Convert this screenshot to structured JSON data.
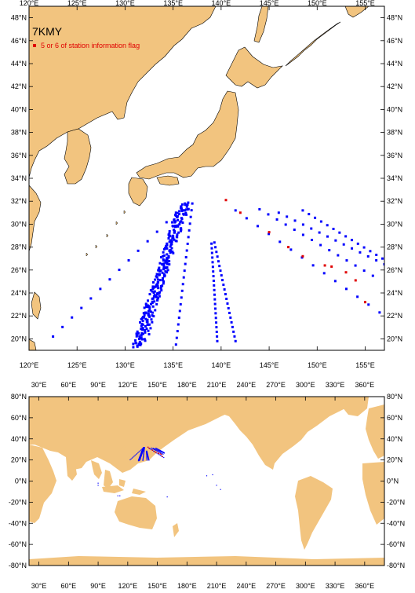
{
  "cruise_code": "7KMY",
  "legend": {
    "flag_label": "5 or 6 of station information flag",
    "flag_color": "#e00000",
    "station_color": "#0000ff"
  },
  "colors": {
    "land": "#f2c47f",
    "ocean": "#ffffff"
  },
  "top_map": {
    "lon_range": [
      120,
      157
    ],
    "lat_range": [
      19,
      49
    ],
    "x_tick_labels": [
      "120°E",
      "125°E",
      "130°E",
      "135°E",
      "140°E",
      "145°E",
      "150°E",
      "155°E"
    ],
    "y_tick_labels": [
      "20°N",
      "22°N",
      "24°N",
      "26°N",
      "28°N",
      "30°N",
      "32°N",
      "34°N",
      "36°N",
      "38°N",
      "40°N",
      "42°N",
      "44°N",
      "46°N",
      "48°N"
    ]
  },
  "bottom_map": {
    "lon_range": [
      20,
      380
    ],
    "lat_range": [
      -80,
      80
    ],
    "x_tick_labels": [
      "30°E",
      "60°E",
      "90°E",
      "120°E",
      "150°E",
      "180°E",
      "210°E",
      "240°E",
      "270°E",
      "300°E",
      "330°E",
      "360°E"
    ],
    "y_tick_labels": [
      "80°N",
      "60°N",
      "40°N",
      "20°N",
      "0°N",
      "-20°N",
      "-40°N",
      "-60°N",
      "-80°N"
    ]
  },
  "chart_data": {
    "type": "scatter",
    "title": "7KMY",
    "series": [
      {
        "name": "5 or 6 of station information flag",
        "points": [
          [
            140.5,
            32.1
          ],
          [
            142,
            31
          ],
          [
            145,
            29.3
          ],
          [
            147,
            28
          ],
          [
            148.5,
            27.2
          ],
          [
            150.8,
            26.4
          ],
          [
            151.5,
            26.3
          ],
          [
            153,
            25.8
          ],
          [
            154,
            25.1
          ],
          [
            155,
            23.2
          ]
        ]
      }
    ],
    "station_tracks": [
      {
        "from": [
          131.3,
          19.3
        ],
        "to": [
          136.2,
          31.8
        ]
      },
      {
        "from": [
          135.3,
          19.5
        ],
        "to": [
          137.0,
          31.8
        ]
      },
      {
        "from": [
          132.5,
          20.4
        ],
        "to": [
          135.8,
          31.4
        ]
      },
      {
        "from": [
          139.3,
          28.4
        ],
        "to": [
          141.5,
          19.8
        ]
      },
      {
        "from": [
          139.0,
          28.3
        ],
        "to": [
          139.6,
          19.8
        ]
      },
      {
        "from": [
          122.5,
          20.2
        ],
        "to": [
          135.3,
          31.0
        ]
      },
      {
        "from": [
          141.5,
          31.2
        ],
        "to": [
          156.5,
          22.3
        ]
      },
      {
        "from": [
          144.0,
          31.3
        ],
        "to": [
          155.8,
          25.5
        ]
      },
      {
        "from": [
          146.0,
          31.0
        ],
        "to": [
          157.0,
          26.5
        ]
      },
      {
        "from": [
          148.5,
          31.2
        ],
        "to": [
          156.8,
          27.0
        ]
      }
    ]
  }
}
